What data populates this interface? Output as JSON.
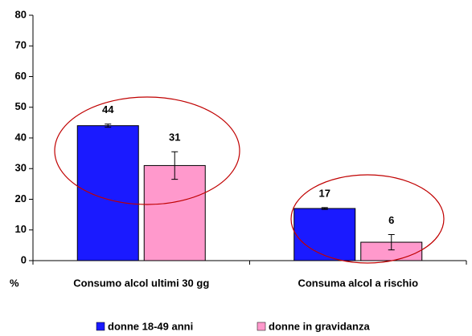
{
  "chart_data": {
    "type": "bar",
    "y_label": "%",
    "categories": [
      "Consumo alcol ultimi 30 gg",
      "Consuma alcol a rischio"
    ],
    "series": [
      {
        "name": "donne 18-49 anni",
        "color": "#1a1aff",
        "values": [
          44,
          17
        ],
        "errors": [
          0.5,
          0.3
        ]
      },
      {
        "name": "donne in gravidanza",
        "color": "#ff99cc",
        "values": [
          31,
          6
        ],
        "errors": [
          4.5,
          2.5
        ]
      }
    ],
    "ylim": [
      0,
      80
    ],
    "yticks": [
      0,
      10,
      20,
      30,
      40,
      50,
      60,
      70,
      80
    ],
    "grid": false,
    "legend": "bottom",
    "data_labels": true
  }
}
